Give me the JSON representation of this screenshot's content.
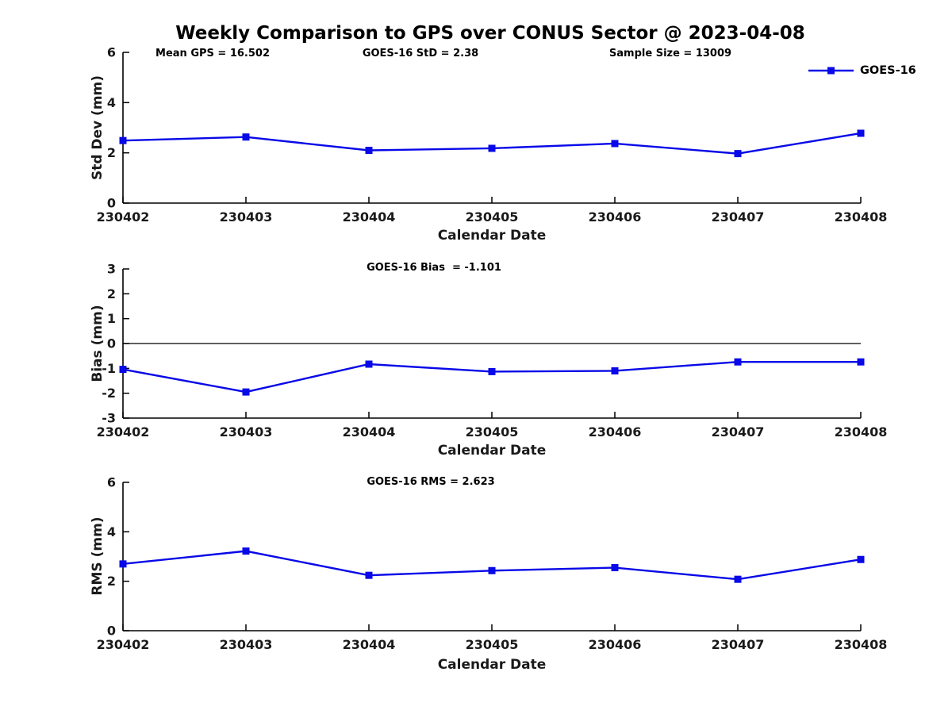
{
  "title": "Weekly Comparison to GPS over CONUS Sector @ 2023-04-08",
  "colors": {
    "line": "#0808e8",
    "axis": "#000000",
    "tick_text": "#1a1a1a"
  },
  "chart_data": [
    {
      "type": "line",
      "ylabel": "Std Dev (mm)",
      "xlabel": "Calendar Date",
      "categories": [
        "230402",
        "230403",
        "230404",
        "230405",
        "230406",
        "230407",
        "230408"
      ],
      "series": [
        {
          "name": "GOES-16",
          "values": [
            2.49,
            2.63,
            2.1,
            2.18,
            2.37,
            1.97,
            2.78
          ]
        }
      ],
      "ylim": [
        0,
        6
      ],
      "yticks": [
        0,
        2,
        4,
        6
      ],
      "grid": false,
      "zero_line": false,
      "legend_position": "top-right",
      "annotations": [
        "Mean GPS = 16.502",
        "GOES-16 StD = 2.38",
        "Sample Size = 13009"
      ]
    },
    {
      "type": "line",
      "ylabel": "Bias (mm)",
      "xlabel": "Calendar Date",
      "categories": [
        "230402",
        "230403",
        "230404",
        "230405",
        "230406",
        "230407",
        "230408"
      ],
      "series": [
        {
          "name": "GOES-16",
          "values": [
            -1.04,
            -1.95,
            -0.83,
            -1.13,
            -1.1,
            -0.74,
            -0.74
          ]
        }
      ],
      "ylim": [
        -3,
        3
      ],
      "yticks": [
        -3,
        -2,
        -1,
        0,
        1,
        2,
        3
      ],
      "grid": false,
      "zero_line": true,
      "annotation": "GOES-16 Bias  = -1.101"
    },
    {
      "type": "line",
      "ylabel": "RMS (mm)",
      "xlabel": "Calendar Date",
      "categories": [
        "230402",
        "230403",
        "230404",
        "230405",
        "230406",
        "230407",
        "230408"
      ],
      "series": [
        {
          "name": "GOES-16",
          "values": [
            2.7,
            3.22,
            2.24,
            2.43,
            2.55,
            2.08,
            2.88
          ]
        }
      ],
      "ylim": [
        0,
        6
      ],
      "yticks": [
        0,
        2,
        4,
        6
      ],
      "grid": false,
      "zero_line": false,
      "annotation": "GOES-16 RMS = 2.623"
    }
  ]
}
